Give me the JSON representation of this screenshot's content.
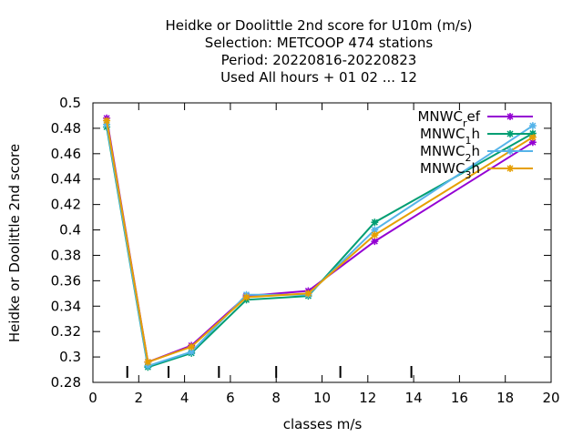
{
  "chart_data": {
    "type": "line",
    "title_lines": [
      "Heidke or Doolittle 2nd score  for U10m (m/s)",
      "Selection: METCOOP    474 stations",
      "Period: 20220816-20220823",
      "Used  All hours + 01 02 ... 12"
    ],
    "xlabel": "classes m/s",
    "ylabel": "Heidke or Doolittle 2nd score",
    "xlim": [
      0,
      20
    ],
    "ylim": [
      0.28,
      0.5
    ],
    "xticks": [
      0,
      2,
      4,
      6,
      8,
      10,
      12,
      14,
      16,
      18,
      20
    ],
    "yticks": [
      0.28,
      0.3,
      0.32,
      0.34,
      0.36,
      0.38,
      0.4,
      0.42,
      0.44,
      0.46,
      0.48,
      0.5
    ],
    "class_boundaries": [
      1.5,
      3.3,
      5.5,
      8.0,
      10.8,
      13.9
    ],
    "legend_position": "top-right",
    "grid": false,
    "series": [
      {
        "name": "MNWC_ref",
        "label_base": "MNWC",
        "label_sub": "r",
        "label_tail": "ef",
        "color": "#9400d3",
        "x": [
          0.6,
          2.4,
          4.3,
          6.7,
          9.4,
          12.3,
          19.2
        ],
        "y": [
          0.488,
          0.296,
          0.309,
          0.348,
          0.352,
          0.391,
          0.469
        ]
      },
      {
        "name": "MNWC_1h",
        "label_base": "MNWC",
        "label_sub": "1",
        "label_tail": "h",
        "color": "#009e73",
        "x": [
          0.6,
          2.4,
          4.3,
          6.7,
          9.4,
          12.3,
          19.2
        ],
        "y": [
          0.481,
          0.292,
          0.303,
          0.345,
          0.348,
          0.406,
          0.476
        ]
      },
      {
        "name": "MNWC_2h",
        "label_base": "MNWC",
        "label_sub": "2",
        "label_tail": "h",
        "color": "#56b4e9",
        "x": [
          0.6,
          2.4,
          4.3,
          6.7,
          9.4,
          12.3,
          19.2
        ],
        "y": [
          0.483,
          0.293,
          0.304,
          0.349,
          0.349,
          0.4,
          0.482
        ]
      },
      {
        "name": "MNWC_3h",
        "label_base": "MNWC",
        "label_sub": "3",
        "label_tail": "h",
        "color": "#e69f00",
        "x": [
          0.6,
          2.4,
          4.3,
          6.7,
          9.4,
          12.3,
          19.2
        ],
        "y": [
          0.486,
          0.296,
          0.308,
          0.347,
          0.35,
          0.396,
          0.473
        ]
      }
    ]
  }
}
